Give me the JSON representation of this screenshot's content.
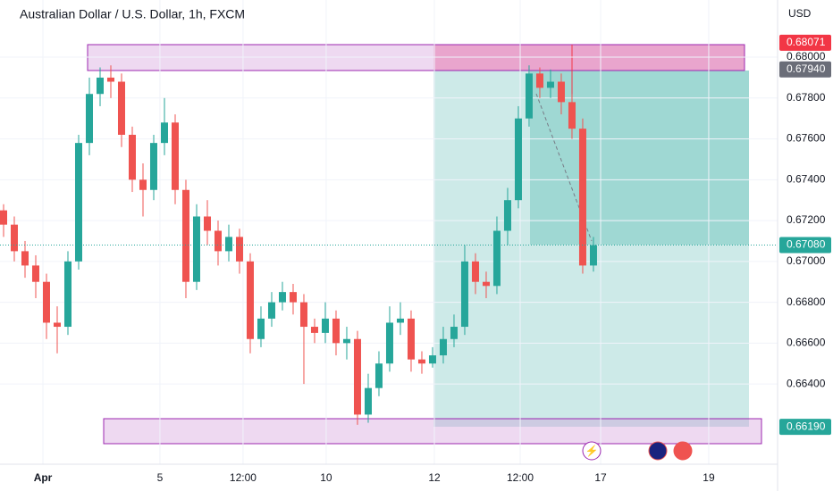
{
  "chart_data": {
    "type": "candlestick",
    "title": "Australian Dollar / U.S. Dollar, 1h, FXCM",
    "currency": "USD",
    "up_color": "#26a69a",
    "down_color": "#ef5350",
    "open": [
      0.6725,
      0.6718,
      0.6705,
      0.6698,
      0.669,
      0.667,
      0.6668,
      0.67,
      0.6758,
      0.6782,
      0.679,
      0.6788,
      0.6762,
      0.674,
      0.6735,
      0.6758,
      0.6768,
      0.6735,
      0.669,
      0.6722,
      0.6715,
      0.6705,
      0.6712,
      0.67,
      0.6662,
      0.6672,
      0.668,
      0.6685,
      0.668,
      0.6668,
      0.6665,
      0.6672,
      0.666,
      0.6662,
      0.6625,
      0.6638,
      0.665,
      0.667,
      0.6672,
      0.6652,
      0.665,
      0.6654,
      0.6662,
      0.6668,
      0.67,
      0.669,
      0.6688,
      0.6715,
      0.673,
      0.677,
      0.6792,
      0.6785,
      0.6788,
      0.6778,
      0.6765,
      0.6698
    ],
    "high": [
      0.6728,
      0.6722,
      0.671,
      0.6703,
      0.6694,
      0.6678,
      0.6705,
      0.6762,
      0.679,
      0.6795,
      0.6796,
      0.6792,
      0.6766,
      0.6748,
      0.6762,
      0.678,
      0.6772,
      0.674,
      0.6728,
      0.673,
      0.672,
      0.6718,
      0.6716,
      0.6704,
      0.6678,
      0.6685,
      0.669,
      0.6689,
      0.6684,
      0.6672,
      0.668,
      0.6676,
      0.6668,
      0.6666,
      0.6645,
      0.6656,
      0.6678,
      0.668,
      0.6676,
      0.6656,
      0.6658,
      0.6668,
      0.6674,
      0.6708,
      0.6704,
      0.6695,
      0.6722,
      0.6736,
      0.6776,
      0.6796,
      0.6795,
      0.6794,
      0.6792,
      0.6782,
      0.677,
      0.6712
    ],
    "low": [
      0.6712,
      0.67,
      0.6692,
      0.6682,
      0.6662,
      0.6655,
      0.6664,
      0.6696,
      0.6752,
      0.6776,
      0.678,
      0.6756,
      0.6734,
      0.6722,
      0.673,
      0.6752,
      0.6728,
      0.6682,
      0.6686,
      0.6708,
      0.6698,
      0.67,
      0.6694,
      0.6655,
      0.6658,
      0.6668,
      0.6676,
      0.6674,
      0.664,
      0.666,
      0.666,
      0.6654,
      0.6652,
      0.662,
      0.6621,
      0.6634,
      0.6646,
      0.6664,
      0.6646,
      0.6645,
      0.6648,
      0.665,
      0.6658,
      0.6664,
      0.6684,
      0.6682,
      0.6684,
      0.6708,
      0.6726,
      0.6766,
      0.678,
      0.678,
      0.6772,
      0.676,
      0.6694,
      0.6695
    ],
    "close": [
      0.6718,
      0.6705,
      0.6698,
      0.669,
      0.667,
      0.6668,
      0.67,
      0.6758,
      0.6782,
      0.679,
      0.6788,
      0.6762,
      0.674,
      0.6735,
      0.6758,
      0.6768,
      0.6735,
      0.669,
      0.6722,
      0.6715,
      0.6705,
      0.6712,
      0.67,
      0.6662,
      0.6672,
      0.668,
      0.6685,
      0.668,
      0.6668,
      0.6665,
      0.6672,
      0.666,
      0.6662,
      0.6625,
      0.6638,
      0.665,
      0.667,
      0.6672,
      0.6652,
      0.665,
      0.6654,
      0.6662,
      0.6668,
      0.67,
      0.669,
      0.6688,
      0.6715,
      0.673,
      0.677,
      0.6792,
      0.6785,
      0.6788,
      0.6778,
      0.6765,
      0.6698,
      0.6708
    ],
    "xlim": [
      -0.333,
      72.17
    ],
    "xticks": [
      {
        "value": 3.67,
        "label": "Apr"
      },
      {
        "value": 14.58,
        "label": "5"
      },
      {
        "value": 22.33,
        "label": "12:00"
      },
      {
        "value": 30.08,
        "label": "10"
      },
      {
        "value": 40.17,
        "label": "12"
      },
      {
        "value": 48.17,
        "label": "12:00"
      },
      {
        "value": 55.67,
        "label": "17"
      },
      {
        "value": 65.75,
        "label": "19"
      }
    ],
    "ylim": [
      0.66007,
      0.6828
    ],
    "yticks": [
      {
        "value": 0.68,
        "label": "0.68000"
      },
      {
        "value": 0.678,
        "label": "0.67800"
      },
      {
        "value": 0.676,
        "label": "0.67600"
      },
      {
        "value": 0.674,
        "label": "0.67400"
      },
      {
        "value": 0.672,
        "label": "0.67200"
      },
      {
        "value": 0.67,
        "label": "0.67000"
      },
      {
        "value": 0.668,
        "label": "0.66800"
      },
      {
        "value": 0.666,
        "label": "0.66600"
      },
      {
        "value": 0.664,
        "label": "0.66400"
      }
    ],
    "price_markers": [
      {
        "value": 0.68071,
        "label": "0.68071",
        "color": "#f23645"
      },
      {
        "value": 0.6794,
        "label": "0.67940",
        "color": "#6a6d78"
      },
      {
        "value": 0.6708,
        "label": "0.67080",
        "color": "#26a69a"
      },
      {
        "value": 0.6619,
        "label": "0.66190",
        "color": "#26a69a"
      }
    ]
  }
}
